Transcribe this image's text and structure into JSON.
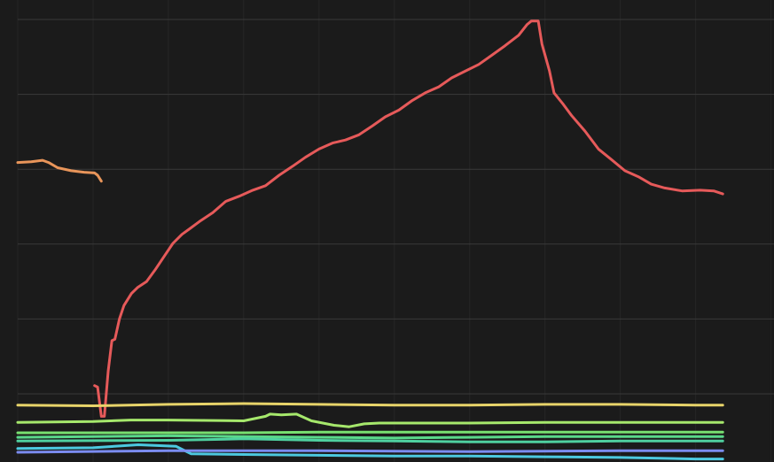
{
  "chart_data": {
    "type": "line",
    "grid": true,
    "xlim": [
      0,
      10.04
    ],
    "xticks": [
      0,
      1,
      2,
      3,
      4,
      5,
      6,
      7,
      8,
      9,
      10
    ],
    "ylim": [
      -0.91,
      5.26
    ],
    "yticks": [
      0,
      1,
      2,
      3,
      4,
      5
    ],
    "series": [
      {
        "color": "#e65a5a",
        "x": [
          1.02,
          1.06,
          1.11,
          1.15,
          1.2,
          1.25,
          1.29,
          1.35,
          1.41,
          1.51,
          1.59,
          1.71,
          1.82,
          1.94,
          2.06,
          2.18,
          2.29,
          2.41,
          2.59,
          2.76,
          2.94,
          3.12,
          3.29,
          3.47,
          3.65,
          3.82,
          4.0,
          4.18,
          4.35,
          4.53,
          4.71,
          4.88,
          5.06,
          5.24,
          5.41,
          5.59,
          5.76,
          5.94,
          6.12,
          6.29,
          6.47,
          6.65,
          6.76,
          6.82,
          6.91,
          6.96,
          7.06,
          7.12,
          7.24,
          7.35,
          7.53,
          7.71,
          7.88,
          8.06,
          8.24,
          8.41,
          8.59,
          8.82,
          9.06,
          9.24,
          9.36
        ],
        "values": [
          0.11,
          0.09,
          -0.3,
          -0.3,
          0.3,
          0.71,
          0.73,
          1.0,
          1.18,
          1.34,
          1.42,
          1.5,
          1.65,
          1.83,
          2.01,
          2.13,
          2.21,
          2.3,
          2.42,
          2.57,
          2.64,
          2.72,
          2.78,
          2.92,
          3.04,
          3.16,
          3.27,
          3.35,
          3.39,
          3.46,
          3.58,
          3.7,
          3.79,
          3.92,
          4.02,
          4.1,
          4.22,
          4.31,
          4.4,
          4.52,
          4.65,
          4.79,
          4.93,
          4.98,
          4.98,
          4.67,
          4.31,
          4.02,
          3.87,
          3.72,
          3.51,
          3.27,
          3.13,
          2.98,
          2.9,
          2.8,
          2.75,
          2.71,
          2.72,
          2.71,
          2.67
        ]
      },
      {
        "color": "#e8955a",
        "x": [
          0,
          0.18,
          0.33,
          0.41,
          0.53,
          0.71,
          0.88,
          1.02,
          1.06,
          1.11
        ],
        "values": [
          3.09,
          3.1,
          3.12,
          3.09,
          3.02,
          2.98,
          2.96,
          2.95,
          2.92,
          2.84
        ]
      },
      {
        "color": "#e8d46a",
        "x": [
          0,
          1,
          2,
          3,
          4,
          5,
          6,
          7,
          8,
          9,
          9.36
        ],
        "values": [
          -0.15,
          -0.16,
          -0.14,
          -0.13,
          -0.14,
          -0.15,
          -0.15,
          -0.14,
          -0.14,
          -0.15,
          -0.15
        ]
      },
      {
        "color": "#a6e86c",
        "x": [
          0,
          1,
          1.5,
          2,
          3,
          3.29,
          3.35,
          3.5,
          3.7,
          3.9,
          4.2,
          4.4,
          4.6,
          4.8,
          5,
          6,
          7,
          8,
          9,
          9.36
        ],
        "values": [
          -0.38,
          -0.37,
          -0.35,
          -0.35,
          -0.36,
          -0.3,
          -0.27,
          -0.28,
          -0.27,
          -0.36,
          -0.42,
          -0.44,
          -0.4,
          -0.39,
          -0.39,
          -0.39,
          -0.38,
          -0.38,
          -0.38,
          -0.38
        ]
      },
      {
        "color": "#78e070",
        "x": [
          0,
          2,
          3,
          4,
          6,
          8,
          9.36
        ],
        "values": [
          -0.52,
          -0.52,
          -0.52,
          -0.51,
          -0.51,
          -0.51,
          -0.51
        ]
      },
      {
        "color": "#5ad88a",
        "x": [
          0,
          2,
          3,
          4,
          5,
          6,
          7,
          8,
          9,
          9.36
        ],
        "values": [
          -0.58,
          -0.56,
          -0.57,
          -0.58,
          -0.59,
          -0.58,
          -0.57,
          -0.57,
          -0.57,
          -0.57
        ]
      },
      {
        "color": "#4fd0a0",
        "x": [
          0,
          2,
          3,
          4,
          5,
          6,
          7,
          8,
          9,
          9.36
        ],
        "values": [
          -0.63,
          -0.62,
          -0.6,
          -0.62,
          -0.63,
          -0.64,
          -0.64,
          -0.63,
          -0.63,
          -0.63
        ]
      },
      {
        "color": "#4cc9e0",
        "x": [
          0,
          1,
          1.6,
          2.1,
          2.3,
          3,
          4,
          5,
          6,
          7,
          8,
          9,
          9.36
        ],
        "values": [
          -0.73,
          -0.72,
          -0.68,
          -0.7,
          -0.8,
          -0.81,
          -0.82,
          -0.83,
          -0.83,
          -0.84,
          -0.85,
          -0.87,
          -0.87
        ]
      },
      {
        "color": "#7b8cf0",
        "x": [
          0,
          2,
          4,
          6,
          8,
          9.36
        ],
        "values": [
          -0.78,
          -0.76,
          -0.76,
          -0.77,
          -0.76,
          -0.76
        ]
      }
    ]
  }
}
